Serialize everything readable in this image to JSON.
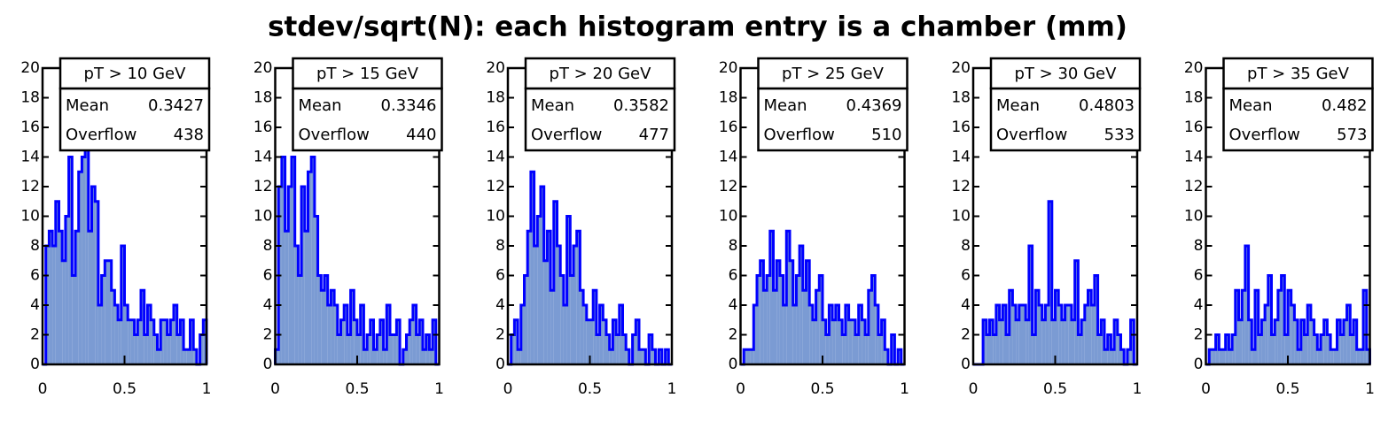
{
  "title": "stdev/sqrt(N): each histogram entry is a chamber (mm)",
  "chart_data": [
    {
      "type": "histogram",
      "title": "pT > 10 GeV",
      "stats": [
        {
          "label": "Mean",
          "value": 0.3427
        },
        {
          "label": "Overflow",
          "value": 438
        }
      ],
      "bins": [
        0,
        0.02,
        0.04,
        0.06,
        0.08,
        0.1,
        0.12,
        0.14,
        0.16,
        0.18,
        0.2,
        0.22,
        0.24,
        0.26,
        0.28,
        0.3,
        0.32,
        0.34,
        0.36,
        0.38,
        0.4,
        0.42,
        0.44,
        0.46,
        0.48,
        0.5,
        0.52,
        0.54,
        0.56,
        0.58,
        0.6,
        0.62,
        0.64,
        0.66,
        0.68,
        0.7,
        0.72,
        0.74,
        0.76,
        0.78,
        0.8,
        0.82,
        0.84,
        0.86,
        0.88,
        0.9,
        0.92,
        0.94,
        0.96,
        0.98,
        1
      ],
      "values": [
        0,
        8,
        9,
        8,
        11,
        9,
        7,
        10,
        14,
        6,
        9,
        13,
        14,
        15,
        9,
        12,
        11,
        4,
        6,
        7,
        7,
        5,
        4,
        3,
        8,
        4,
        3,
        3,
        2,
        3,
        5,
        2,
        4,
        3,
        2,
        1,
        3,
        3,
        2,
        3,
        4,
        2,
        3,
        1,
        1,
        3,
        1,
        0,
        2,
        3
      ],
      "xlim": [
        0,
        1
      ],
      "ylim": [
        0,
        20
      ],
      "xticks": [
        0,
        0.5,
        1
      ],
      "yticks": [
        0,
        2,
        4,
        6,
        8,
        10,
        12,
        14,
        16,
        18,
        20
      ],
      "color": "#7b9bd3",
      "line_color": "#0000ff"
    },
    {
      "type": "histogram",
      "title": "pT > 15 GeV",
      "stats": [
        {
          "label": "Mean",
          "value": 0.3346
        },
        {
          "label": "Overflow",
          "value": 440
        }
      ],
      "bins": [
        0,
        0.02,
        0.04,
        0.06,
        0.08,
        0.1,
        0.12,
        0.14,
        0.16,
        0.18,
        0.2,
        0.22,
        0.24,
        0.26,
        0.28,
        0.3,
        0.32,
        0.34,
        0.36,
        0.38,
        0.4,
        0.42,
        0.44,
        0.46,
        0.48,
        0.5,
        0.52,
        0.54,
        0.56,
        0.58,
        0.6,
        0.62,
        0.64,
        0.66,
        0.68,
        0.7,
        0.72,
        0.74,
        0.76,
        0.78,
        0.8,
        0.82,
        0.84,
        0.86,
        0.88,
        0.9,
        0.92,
        0.94,
        0.96,
        0.98,
        1
      ],
      "values": [
        1,
        12,
        14,
        9,
        12,
        14,
        8,
        6,
        12,
        9,
        13,
        14,
        10,
        6,
        5,
        6,
        4,
        5,
        4,
        2,
        3,
        4,
        2,
        5,
        3,
        2,
        4,
        1,
        2,
        3,
        1,
        2,
        3,
        1,
        4,
        2,
        2,
        3,
        0,
        1,
        2,
        3,
        4,
        2,
        3,
        1,
        2,
        1,
        3,
        0
      ],
      "xlim": [
        0,
        1
      ],
      "ylim": [
        0,
        20
      ],
      "xticks": [
        0,
        0.5,
        1
      ],
      "yticks": [
        0,
        2,
        4,
        6,
        8,
        10,
        12,
        14,
        16,
        18,
        20
      ],
      "color": "#7b9bd3",
      "line_color": "#0000ff"
    },
    {
      "type": "histogram",
      "title": "pT > 20 GeV",
      "stats": [
        {
          "label": "Mean",
          "value": 0.3582
        },
        {
          "label": "Overflow",
          "value": 477
        }
      ],
      "bins": [
        0,
        0.02,
        0.04,
        0.06,
        0.08,
        0.1,
        0.12,
        0.14,
        0.16,
        0.18,
        0.2,
        0.22,
        0.24,
        0.26,
        0.28,
        0.3,
        0.32,
        0.34,
        0.36,
        0.38,
        0.4,
        0.42,
        0.44,
        0.46,
        0.48,
        0.5,
        0.52,
        0.54,
        0.56,
        0.58,
        0.6,
        0.62,
        0.64,
        0.66,
        0.68,
        0.7,
        0.72,
        0.74,
        0.76,
        0.78,
        0.8,
        0.82,
        0.84,
        0.86,
        0.88,
        0.9,
        0.92,
        0.94,
        0.96,
        0.98,
        1
      ],
      "values": [
        0,
        2,
        3,
        1,
        4,
        6,
        9,
        13,
        8,
        10,
        12,
        7,
        9,
        5,
        11,
        8,
        6,
        4,
        10,
        6,
        8,
        9,
        5,
        4,
        3,
        3,
        5,
        2,
        4,
        3,
        2,
        1,
        3,
        2,
        4,
        2,
        1,
        0,
        2,
        3,
        1,
        1,
        0,
        2,
        1,
        0,
        1,
        0,
        1,
        0
      ],
      "xlim": [
        0,
        1
      ],
      "ylim": [
        0,
        20
      ],
      "xticks": [
        0,
        0.5,
        1
      ],
      "yticks": [
        0,
        2,
        4,
        6,
        8,
        10,
        12,
        14,
        16,
        18,
        20
      ],
      "color": "#7b9bd3",
      "line_color": "#0000ff"
    },
    {
      "type": "histogram",
      "title": "pT > 25 GeV",
      "stats": [
        {
          "label": "Mean",
          "value": 0.4369
        },
        {
          "label": "Overflow",
          "value": 510
        }
      ],
      "bins": [
        0,
        0.02,
        0.04,
        0.06,
        0.08,
        0.1,
        0.12,
        0.14,
        0.16,
        0.18,
        0.2,
        0.22,
        0.24,
        0.26,
        0.28,
        0.3,
        0.32,
        0.34,
        0.36,
        0.38,
        0.4,
        0.42,
        0.44,
        0.46,
        0.48,
        0.5,
        0.52,
        0.54,
        0.56,
        0.58,
        0.6,
        0.62,
        0.64,
        0.66,
        0.68,
        0.7,
        0.72,
        0.74,
        0.76,
        0.78,
        0.8,
        0.82,
        0.84,
        0.86,
        0.88,
        0.9,
        0.92,
        0.94,
        0.96,
        0.98,
        1
      ],
      "values": [
        0,
        1,
        1,
        1,
        4,
        6,
        7,
        5,
        6,
        9,
        5,
        7,
        6,
        4,
        9,
        7,
        4,
        6,
        8,
        5,
        7,
        4,
        3,
        5,
        6,
        3,
        2,
        4,
        3,
        4,
        3,
        2,
        4,
        3,
        3,
        2,
        4,
        3,
        2,
        5,
        6,
        4,
        2,
        3,
        1,
        0,
        2,
        0,
        1,
        0
      ],
      "xlim": [
        0,
        1
      ],
      "ylim": [
        0,
        20
      ],
      "xticks": [
        0,
        0.5,
        1
      ],
      "yticks": [
        0,
        2,
        4,
        6,
        8,
        10,
        12,
        14,
        16,
        18,
        20
      ],
      "color": "#7b9bd3",
      "line_color": "#0000ff"
    },
    {
      "type": "histogram",
      "title": "pT > 30 GeV",
      "stats": [
        {
          "label": "Mean",
          "value": 0.4803
        },
        {
          "label": "Overflow",
          "value": 533
        }
      ],
      "bins": [
        0,
        0.02,
        0.04,
        0.06,
        0.08,
        0.1,
        0.12,
        0.14,
        0.16,
        0.18,
        0.2,
        0.22,
        0.24,
        0.26,
        0.28,
        0.3,
        0.32,
        0.34,
        0.36,
        0.38,
        0.4,
        0.42,
        0.44,
        0.46,
        0.48,
        0.5,
        0.52,
        0.54,
        0.56,
        0.58,
        0.6,
        0.62,
        0.64,
        0.66,
        0.68,
        0.7,
        0.72,
        0.74,
        0.76,
        0.78,
        0.8,
        0.82,
        0.84,
        0.86,
        0.88,
        0.9,
        0.92,
        0.94,
        0.96,
        0.98,
        1
      ],
      "values": [
        0,
        0,
        0,
        3,
        2,
        3,
        2,
        4,
        3,
        4,
        2,
        5,
        4,
        3,
        4,
        4,
        3,
        8,
        2,
        5,
        4,
        3,
        4,
        11,
        3,
        5,
        4,
        3,
        4,
        4,
        3,
        7,
        2,
        3,
        4,
        5,
        4,
        6,
        2,
        3,
        1,
        2,
        1,
        3,
        2,
        1,
        0,
        1,
        3,
        0
      ],
      "xlim": [
        0,
        1
      ],
      "ylim": [
        0,
        20
      ],
      "xticks": [
        0,
        0.5,
        1
      ],
      "yticks": [
        0,
        2,
        4,
        6,
        8,
        10,
        12,
        14,
        16,
        18,
        20
      ],
      "color": "#7b9bd3",
      "line_color": "#0000ff"
    },
    {
      "type": "histogram",
      "title": "pT > 35 GeV",
      "stats": [
        {
          "label": "Mean",
          "value": 0.482
        },
        {
          "label": "Overflow",
          "value": 573
        }
      ],
      "bins": [
        0,
        0.02,
        0.04,
        0.06,
        0.08,
        0.1,
        0.12,
        0.14,
        0.16,
        0.18,
        0.2,
        0.22,
        0.24,
        0.26,
        0.28,
        0.3,
        0.32,
        0.34,
        0.36,
        0.38,
        0.4,
        0.42,
        0.44,
        0.46,
        0.48,
        0.5,
        0.52,
        0.54,
        0.56,
        0.58,
        0.6,
        0.62,
        0.64,
        0.66,
        0.68,
        0.7,
        0.72,
        0.74,
        0.76,
        0.78,
        0.8,
        0.82,
        0.84,
        0.86,
        0.88,
        0.9,
        0.92,
        0.94,
        0.96,
        0.98,
        1
      ],
      "values": [
        0,
        1,
        1,
        2,
        1,
        1,
        2,
        1,
        2,
        5,
        3,
        5,
        8,
        3,
        1,
        5,
        2,
        3,
        4,
        6,
        2,
        3,
        5,
        6,
        2,
        5,
        4,
        3,
        1,
        3,
        2,
        4,
        3,
        2,
        1,
        2,
        3,
        2,
        1,
        1,
        3,
        2,
        3,
        4,
        2,
        3,
        1,
        1,
        5,
        1
      ],
      "xlim": [
        0,
        1
      ],
      "ylim": [
        0,
        20
      ],
      "xticks": [
        0,
        0.5,
        1
      ],
      "yticks": [
        0,
        2,
        4,
        6,
        8,
        10,
        12,
        14,
        16,
        18,
        20
      ],
      "color": "#7b9bd3",
      "line_color": "#0000ff"
    }
  ]
}
